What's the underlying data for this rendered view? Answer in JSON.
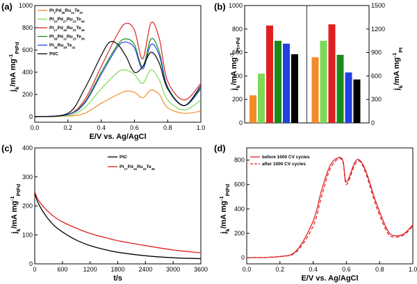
{
  "chart_data": [
    {
      "panel": "(a)",
      "type": "line",
      "xlabel": "E/V vs. Ag/AgCl",
      "ylabel": "j_k/mA mg^-1_PtPd",
      "xlim": [
        0.0,
        1.0
      ],
      "ylim": [
        -50,
        1000
      ],
      "xticks": [
        "0.0",
        "0.2",
        "0.4",
        "0.6",
        "0.8",
        "1.0"
      ],
      "yticks": [
        "0",
        "200",
        "400",
        "600",
        "800",
        "1000"
      ],
      "legend_position": "top-left",
      "series": [
        {
          "name": "Pt7Pd35Ru21Te37",
          "color": "#f28c28",
          "x": [
            0,
            0.2,
            0.3,
            0.4,
            0.5,
            0.55,
            0.6,
            0.65,
            0.7,
            0.75,
            0.8,
            0.9,
            1.0
          ],
          "y": [
            0,
            5,
            30,
            120,
            200,
            230,
            220,
            170,
            240,
            200,
            80,
            30,
            50
          ]
        },
        {
          "name": "Pt10Pd27Ru23Te40",
          "color": "#7ed957",
          "x": [
            0,
            0.2,
            0.3,
            0.4,
            0.5,
            0.55,
            0.6,
            0.65,
            0.7,
            0.75,
            0.8,
            0.9,
            1.0
          ],
          "y": [
            0,
            10,
            80,
            250,
            400,
            420,
            380,
            300,
            420,
            330,
            150,
            60,
            150
          ]
        },
        {
          "name": "Pt17Pd16Ru22Te45",
          "color": "#e02020",
          "x": [
            0,
            0.2,
            0.3,
            0.4,
            0.5,
            0.55,
            0.6,
            0.65,
            0.7,
            0.75,
            0.8,
            0.9,
            1.0
          ],
          "y": [
            0,
            20,
            150,
            450,
            750,
            840,
            780,
            520,
            845,
            700,
            320,
            150,
            300
          ]
        },
        {
          "name": "Pt28Pd12Ru23Te39",
          "color": "#1a8a1a",
          "x": [
            0,
            0.2,
            0.3,
            0.4,
            0.5,
            0.55,
            0.6,
            0.65,
            0.7,
            0.75,
            0.8,
            0.9,
            1.0
          ],
          "y": [
            0,
            20,
            130,
            400,
            650,
            700,
            650,
            450,
            700,
            580,
            270,
            100,
            250
          ]
        },
        {
          "name": "Pt34Ru25Te41",
          "color": "#2040e0",
          "x": [
            0,
            0.2,
            0.3,
            0.4,
            0.5,
            0.55,
            0.6,
            0.65,
            0.7,
            0.75,
            0.8,
            0.9,
            1.0
          ],
          "y": [
            0,
            20,
            120,
            380,
            630,
            670,
            620,
            430,
            650,
            550,
            260,
            100,
            260
          ]
        },
        {
          "name": "Pt/C",
          "color": "#000000",
          "x": [
            0,
            0.2,
            0.3,
            0.4,
            0.45,
            0.5,
            0.55,
            0.6,
            0.65,
            0.7,
            0.75,
            0.8,
            0.9,
            1.0
          ],
          "y": [
            0,
            30,
            250,
            550,
            670,
            650,
            540,
            400,
            450,
            580,
            480,
            250,
            100,
            280
          ]
        }
      ]
    },
    {
      "panel": "(b)",
      "type": "bar",
      "ylabel_left": "j_k/mA mg^-1_Pt+Pd",
      "ylabel_right": "j_k/mA mg^-1_Pt",
      "ylim_left": [
        0,
        1000
      ],
      "ylim_right": [
        0,
        1500
      ],
      "yticks_left": [
        "0",
        "200",
        "400",
        "600",
        "800",
        "1000"
      ],
      "yticks_right": [
        "0",
        "300",
        "600",
        "900",
        "1200",
        "1500"
      ],
      "groups": [
        {
          "axis": "left",
          "values": [
            235,
            420,
            830,
            700,
            675,
            585
          ],
          "colors": [
            "#f28c28",
            "#7ed957",
            "#e02020",
            "#1a8a1a",
            "#2040e0",
            "#000000"
          ]
        },
        {
          "axis": "right",
          "values": [
            840,
            1050,
            1260,
            870,
            645,
            555
          ],
          "colors": [
            "#f28c28",
            "#7ed957",
            "#e02020",
            "#1a8a1a",
            "#2040e0",
            "#000000"
          ]
        }
      ]
    },
    {
      "panel": "(c)",
      "type": "line",
      "xlabel": "t/s",
      "ylabel": "j_k/mA mg^-1_PtPd",
      "xlim": [
        0,
        3600
      ],
      "ylim": [
        0,
        400
      ],
      "xticks": [
        "0",
        "600",
        "1200",
        "1800",
        "2400",
        "3000",
        "3600"
      ],
      "yticks": [
        "0",
        "100",
        "200",
        "300",
        "400"
      ],
      "legend_position": "top-right",
      "series": [
        {
          "name": "PtC",
          "color": "#000000",
          "x": [
            0,
            60,
            200,
            400,
            600,
            900,
            1200,
            1500,
            1800,
            2400,
            3000,
            3600
          ],
          "y": [
            245,
            215,
            175,
            135,
            110,
            82,
            63,
            50,
            40,
            28,
            21,
            18
          ]
        },
        {
          "name": "Pt17Pd16Ru22Te45",
          "color": "#e02020",
          "x": [
            0,
            60,
            200,
            400,
            600,
            900,
            1200,
            1500,
            1800,
            2400,
            3000,
            3600
          ],
          "y": [
            250,
            225,
            195,
            165,
            145,
            123,
            105,
            92,
            80,
            63,
            48,
            38
          ]
        }
      ]
    },
    {
      "panel": "(d)",
      "type": "line",
      "xlabel": "E/V vs. Ag/AgCl",
      "ylabel": "j_k/mA mg^-1_PtPd",
      "xlim": [
        0.0,
        1.0
      ],
      "ylim": [
        -50,
        900
      ],
      "xticks": [
        "0.0",
        "0.2",
        "0.4",
        "0.6",
        "0.8",
        "1.0"
      ],
      "yticks": [
        "0",
        "200",
        "400",
        "600",
        "800"
      ],
      "legend_position": "top-left",
      "series": [
        {
          "name": "before 1000 CV cycles",
          "color": "#e02020",
          "dash": false,
          "x": [
            0,
            0.2,
            0.3,
            0.4,
            0.45,
            0.5,
            0.55,
            0.58,
            0.6,
            0.65,
            0.68,
            0.72,
            0.78,
            0.85,
            0.9,
            0.95,
            1.0
          ],
          "y": [
            0,
            10,
            60,
            300,
            550,
            750,
            820,
            790,
            620,
            780,
            800,
            700,
            450,
            220,
            180,
            200,
            270
          ]
        },
        {
          "name": "after 1000 CV cycles",
          "color": "#e02020",
          "dash": true,
          "x": [
            0,
            0.2,
            0.3,
            0.4,
            0.45,
            0.5,
            0.55,
            0.58,
            0.6,
            0.65,
            0.68,
            0.72,
            0.78,
            0.85,
            0.9,
            0.95,
            1.0
          ],
          "y": [
            0,
            10,
            50,
            260,
            500,
            720,
            810,
            780,
            600,
            760,
            790,
            680,
            420,
            200,
            170,
            190,
            260
          ]
        }
      ]
    }
  ]
}
